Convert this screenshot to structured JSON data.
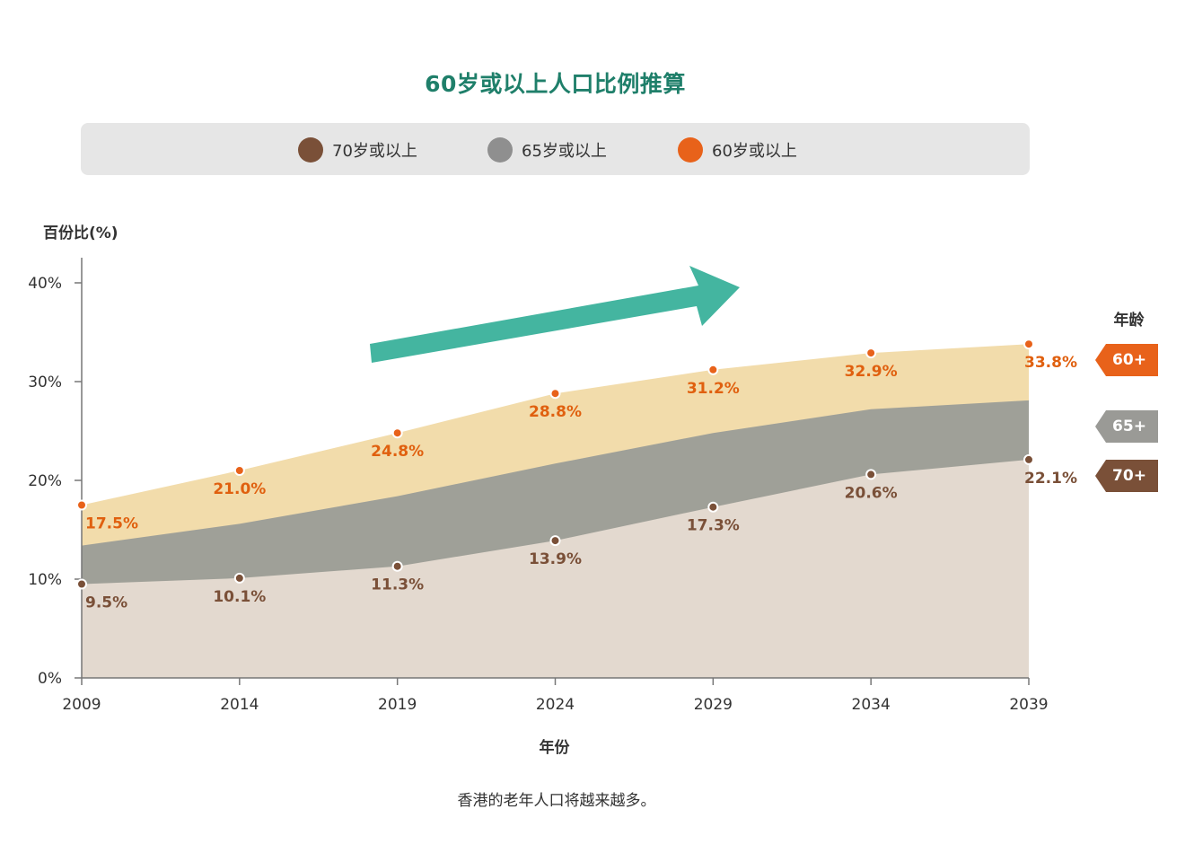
{
  "title": "60岁或以上人口比例推算",
  "legend": [
    {
      "label": "70岁或以上",
      "color": "#7a5038"
    },
    {
      "label": "65岁或以上",
      "color": "#8f8f8f"
    },
    {
      "label": "60岁或以上",
      "color": "#e8621a"
    }
  ],
  "ylabel": "百份比(%)",
  "xlabel": "年份",
  "caption": "香港的老年人口将越来越多。",
  "age_panel": {
    "title": "年龄",
    "tags": [
      {
        "label": "60+",
        "color": "#e8621a"
      },
      {
        "label": "65+",
        "color": "#9a9a96"
      },
      {
        "label": "70+",
        "color": "#7a5038"
      }
    ]
  },
  "chart_data": {
    "type": "area",
    "x": [
      "2009",
      "2014",
      "2019",
      "2024",
      "2029",
      "2034",
      "2039"
    ],
    "ylim": [
      0,
      40
    ],
    "yticks": [
      "0%",
      "10%",
      "20%",
      "30%",
      "40%"
    ],
    "series": [
      {
        "name": "60岁或以上",
        "values": [
          17.5,
          21.0,
          24.8,
          28.8,
          31.2,
          32.9,
          33.8
        ],
        "labels": [
          "17.5%",
          "21.0%",
          "24.8%",
          "28.8%",
          "31.2%",
          "32.9%",
          "33.8%"
        ],
        "fill": "#f2dcab",
        "point_color": "#e8621a",
        "label_color": "#e0600f"
      },
      {
        "name": "65岁或以上",
        "values": [
          13.4,
          15.6,
          18.4,
          21.7,
          24.8,
          27.2,
          28.1
        ],
        "fill": "#9fa098"
      },
      {
        "name": "70岁或以上",
        "values": [
          9.5,
          10.1,
          11.3,
          13.9,
          17.3,
          20.6,
          22.1
        ],
        "labels": [
          "9.5%",
          "10.1%",
          "11.3%",
          "13.9%",
          "17.3%",
          "20.6%",
          "22.1%"
        ],
        "fill": "#e3d9cf",
        "point_color": "#7a5038",
        "label_color": "#7a5038"
      }
    ],
    "arrow_color": "#44b5a0",
    "grid": false
  }
}
